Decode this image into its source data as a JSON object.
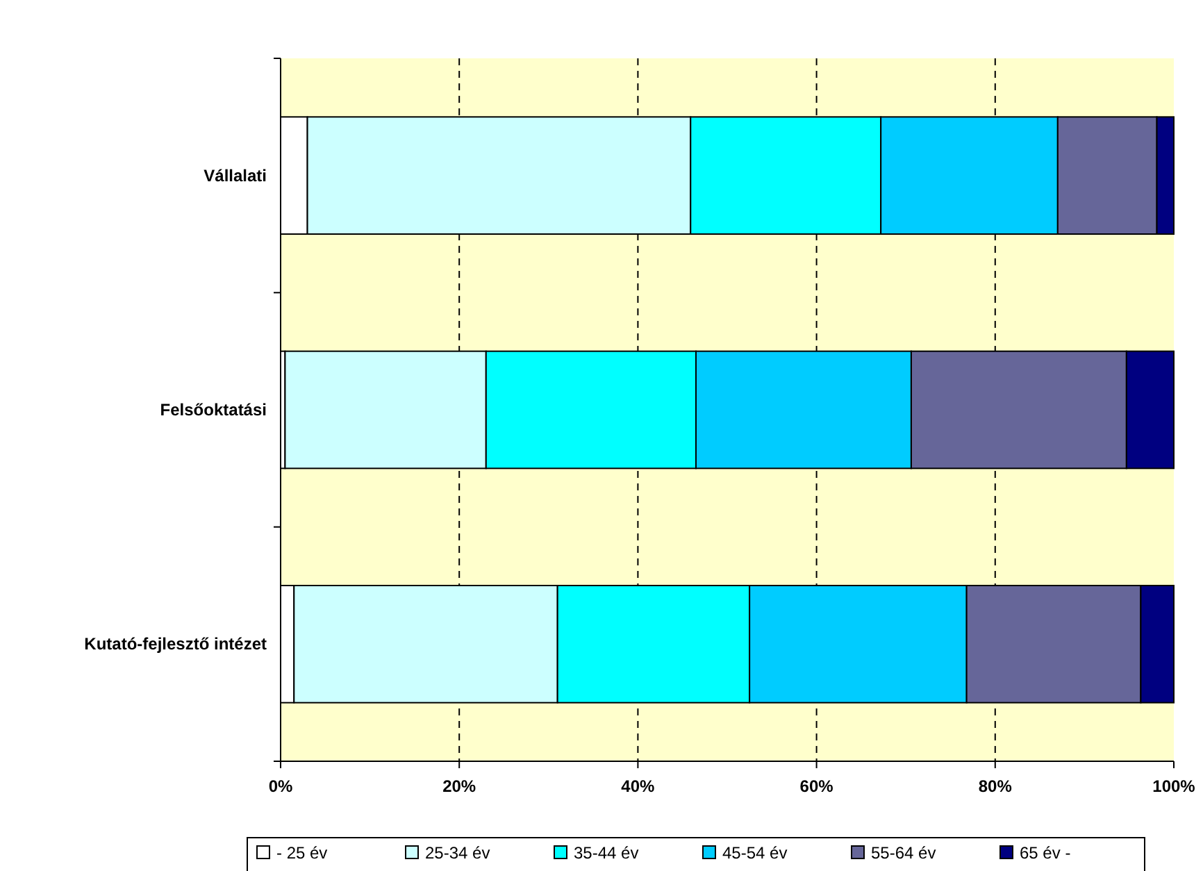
{
  "chart_data": {
    "type": "bar",
    "orientation": "horizontal",
    "stacked": true,
    "categories": [
      "Vállalati",
      "Felsőoktatási",
      "Kutató-fejlesztő intézet"
    ],
    "series": [
      {
        "name": "- 25 év",
        "color": "#ffffff",
        "values": [
          3.0,
          0.5,
          1.5
        ]
      },
      {
        "name": "25-34 év",
        "color": "#ccffff",
        "values": [
          42.9,
          22.5,
          29.5
        ]
      },
      {
        "name": "35-44 év",
        "color": "#00ffff",
        "values": [
          21.3,
          23.5,
          21.5
        ]
      },
      {
        "name": "45-54 év",
        "color": "#00ccff",
        "values": [
          19.8,
          24.1,
          24.3
        ]
      },
      {
        "name": "55-64 év",
        "color": "#666699",
        "values": [
          11.1,
          24.1,
          19.5
        ]
      },
      {
        "name": "65 év -",
        "color": "#000080",
        "values": [
          1.9,
          5.3,
          3.7
        ]
      }
    ],
    "xlim": [
      0,
      100
    ],
    "xticks": [
      {
        "value": 0,
        "label": "0%"
      },
      {
        "value": 20,
        "label": "20%"
      },
      {
        "value": 40,
        "label": "40%"
      },
      {
        "value": 60,
        "label": "60%"
      },
      {
        "value": 80,
        "label": "80%"
      },
      {
        "value": 100,
        "label": "100%"
      }
    ],
    "grid": "x",
    "legend": "bottom"
  }
}
